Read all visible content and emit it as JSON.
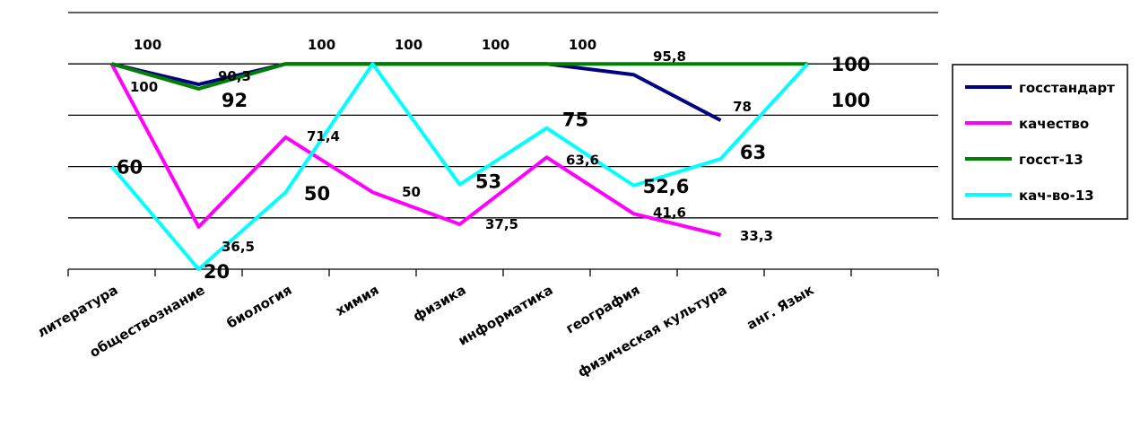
{
  "chart_data": {
    "type": "line",
    "categories": [
      "литература",
      "обществознание",
      "биология",
      "химия",
      "физика",
      "информатика",
      "география",
      "физическая культура",
      "анг. Язык",
      ""
    ],
    "ylim": [
      20,
      120
    ],
    "grid": true,
    "legend_position": "right",
    "series": [
      {
        "name": "госстандарт",
        "color": "#000080",
        "values": [
          100,
          92,
          100,
          100,
          100,
          100,
          95.8,
          78,
          null,
          null
        ],
        "labels": [
          "100",
          "92",
          "100",
          "100",
          "100",
          "100",
          "95,8",
          "78",
          "",
          ""
        ],
        "label_size": "mixed"
      },
      {
        "name": "качество",
        "color": "#ff00ff",
        "values": [
          100,
          36.5,
          71.4,
          50,
          37.5,
          63.6,
          41.6,
          33.3,
          null,
          null
        ],
        "labels": [
          "100",
          "36,5",
          "71,4",
          "50",
          "37,5",
          "63,6",
          "41,6",
          "33,3",
          "",
          ""
        ]
      },
      {
        "name": "госст-13",
        "color": "#008000",
        "values": [
          100,
          90.3,
          100,
          100,
          100,
          100,
          100,
          100,
          100,
          null
        ],
        "labels": [
          "",
          "90,3",
          "",
          "",
          "",
          "",
          "",
          "",
          "100",
          ""
        ]
      },
      {
        "name": "кач-во-13",
        "color": "#00ffff",
        "values": [
          60,
          20,
          50,
          100,
          53,
          75,
          52.6,
          63,
          100,
          null
        ],
        "labels": [
          "60",
          "20",
          "50",
          "",
          "53",
          "75",
          "52,6",
          "63",
          "100",
          ""
        ]
      }
    ]
  }
}
